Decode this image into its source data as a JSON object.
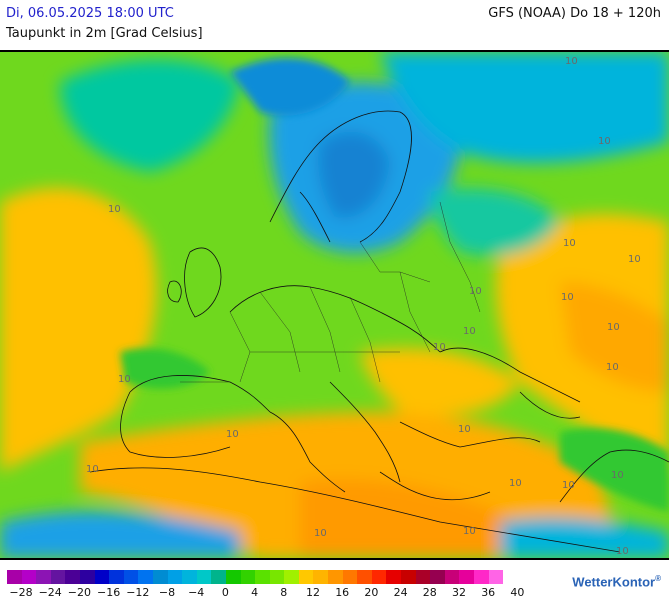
{
  "header": {
    "datetime": "Di, 06.05.2025 18:00 UTC",
    "variable": "Taupunkt in 2m [Grad Celsius]",
    "model_run": "GFS (NOAA) Do 18 + 120h"
  },
  "legend": {
    "labels": [
      "−28",
      "−24",
      "−20",
      "−16",
      "−12",
      "−8",
      "−4",
      "0",
      "4",
      "8",
      "12",
      "16",
      "20",
      "24",
      "28",
      "32",
      "36",
      "40"
    ],
    "colors": [
      "#a800a8",
      "#b400c8",
      "#8c14b4",
      "#6414a0",
      "#4b0096",
      "#2d00a0",
      "#0000c8",
      "#0032dc",
      "#0050e6",
      "#0073f0",
      "#008cd2",
      "#00a0e6",
      "#00b4dc",
      "#00c8c8",
      "#00b48c",
      "#14c800",
      "#32d200",
      "#5ae100",
      "#78e600",
      "#a0f000",
      "#ffc800",
      "#ffb400",
      "#ff9600",
      "#ff7800",
      "#ff5000",
      "#ff2800",
      "#e60000",
      "#c80000",
      "#aa0028",
      "#960050",
      "#c80078",
      "#e6009b",
      "#ff28c8",
      "#ff64e6"
    ]
  },
  "contour_labels": [
    "10",
    "10",
    "10",
    "10",
    "10",
    "10",
    "10",
    "10",
    "10",
    "10",
    "10",
    "10",
    "10",
    "10",
    "10",
    "10",
    "10",
    "10",
    "10",
    "10",
    "10"
  ],
  "brand": {
    "name": "WetterKontor",
    "mark": "®"
  }
}
